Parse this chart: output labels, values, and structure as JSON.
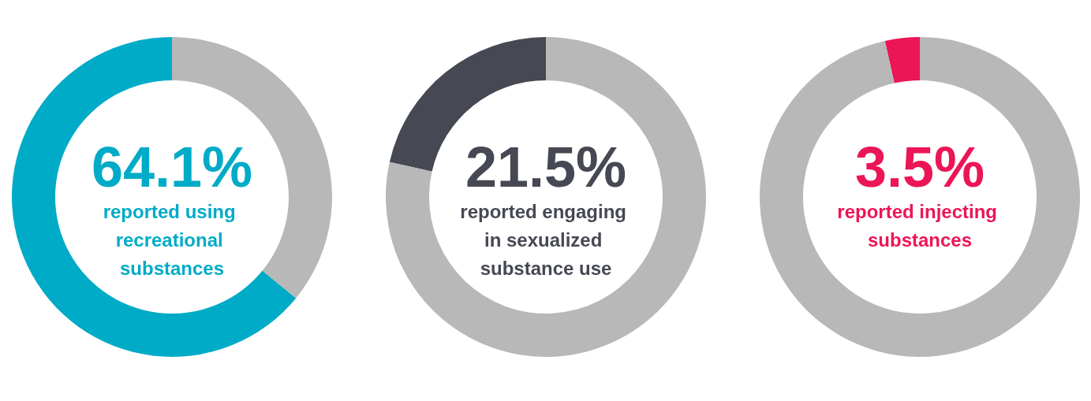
{
  "chart_data": [
    {
      "type": "donut",
      "categories": [
        null,
        null
      ],
      "values": [
        64.1,
        35.9
      ],
      "colors": [
        "#00abc7",
        "#b8b8b8"
      ],
      "value_labels": [
        "64.1%",
        null
      ],
      "annotations": [
        "reported using recreational substances"
      ]
    },
    {
      "type": "donut",
      "categories": [
        null,
        null
      ],
      "values": [
        21.5,
        78.5
      ],
      "colors": [
        "#464853",
        "#b8b8b8"
      ],
      "value_labels": [
        "21.5%",
        null
      ],
      "annotations": [
        "reported engaging in sexualized substance use"
      ]
    },
    {
      "type": "donut",
      "categories": [
        null,
        null
      ],
      "values": [
        3.5,
        96.5
      ],
      "colors": [
        "#ec1556",
        "#b8b8b8"
      ],
      "value_labels": [
        "3.5%",
        null
      ],
      "annotations": [
        "reported injecting substances"
      ]
    }
  ]
}
